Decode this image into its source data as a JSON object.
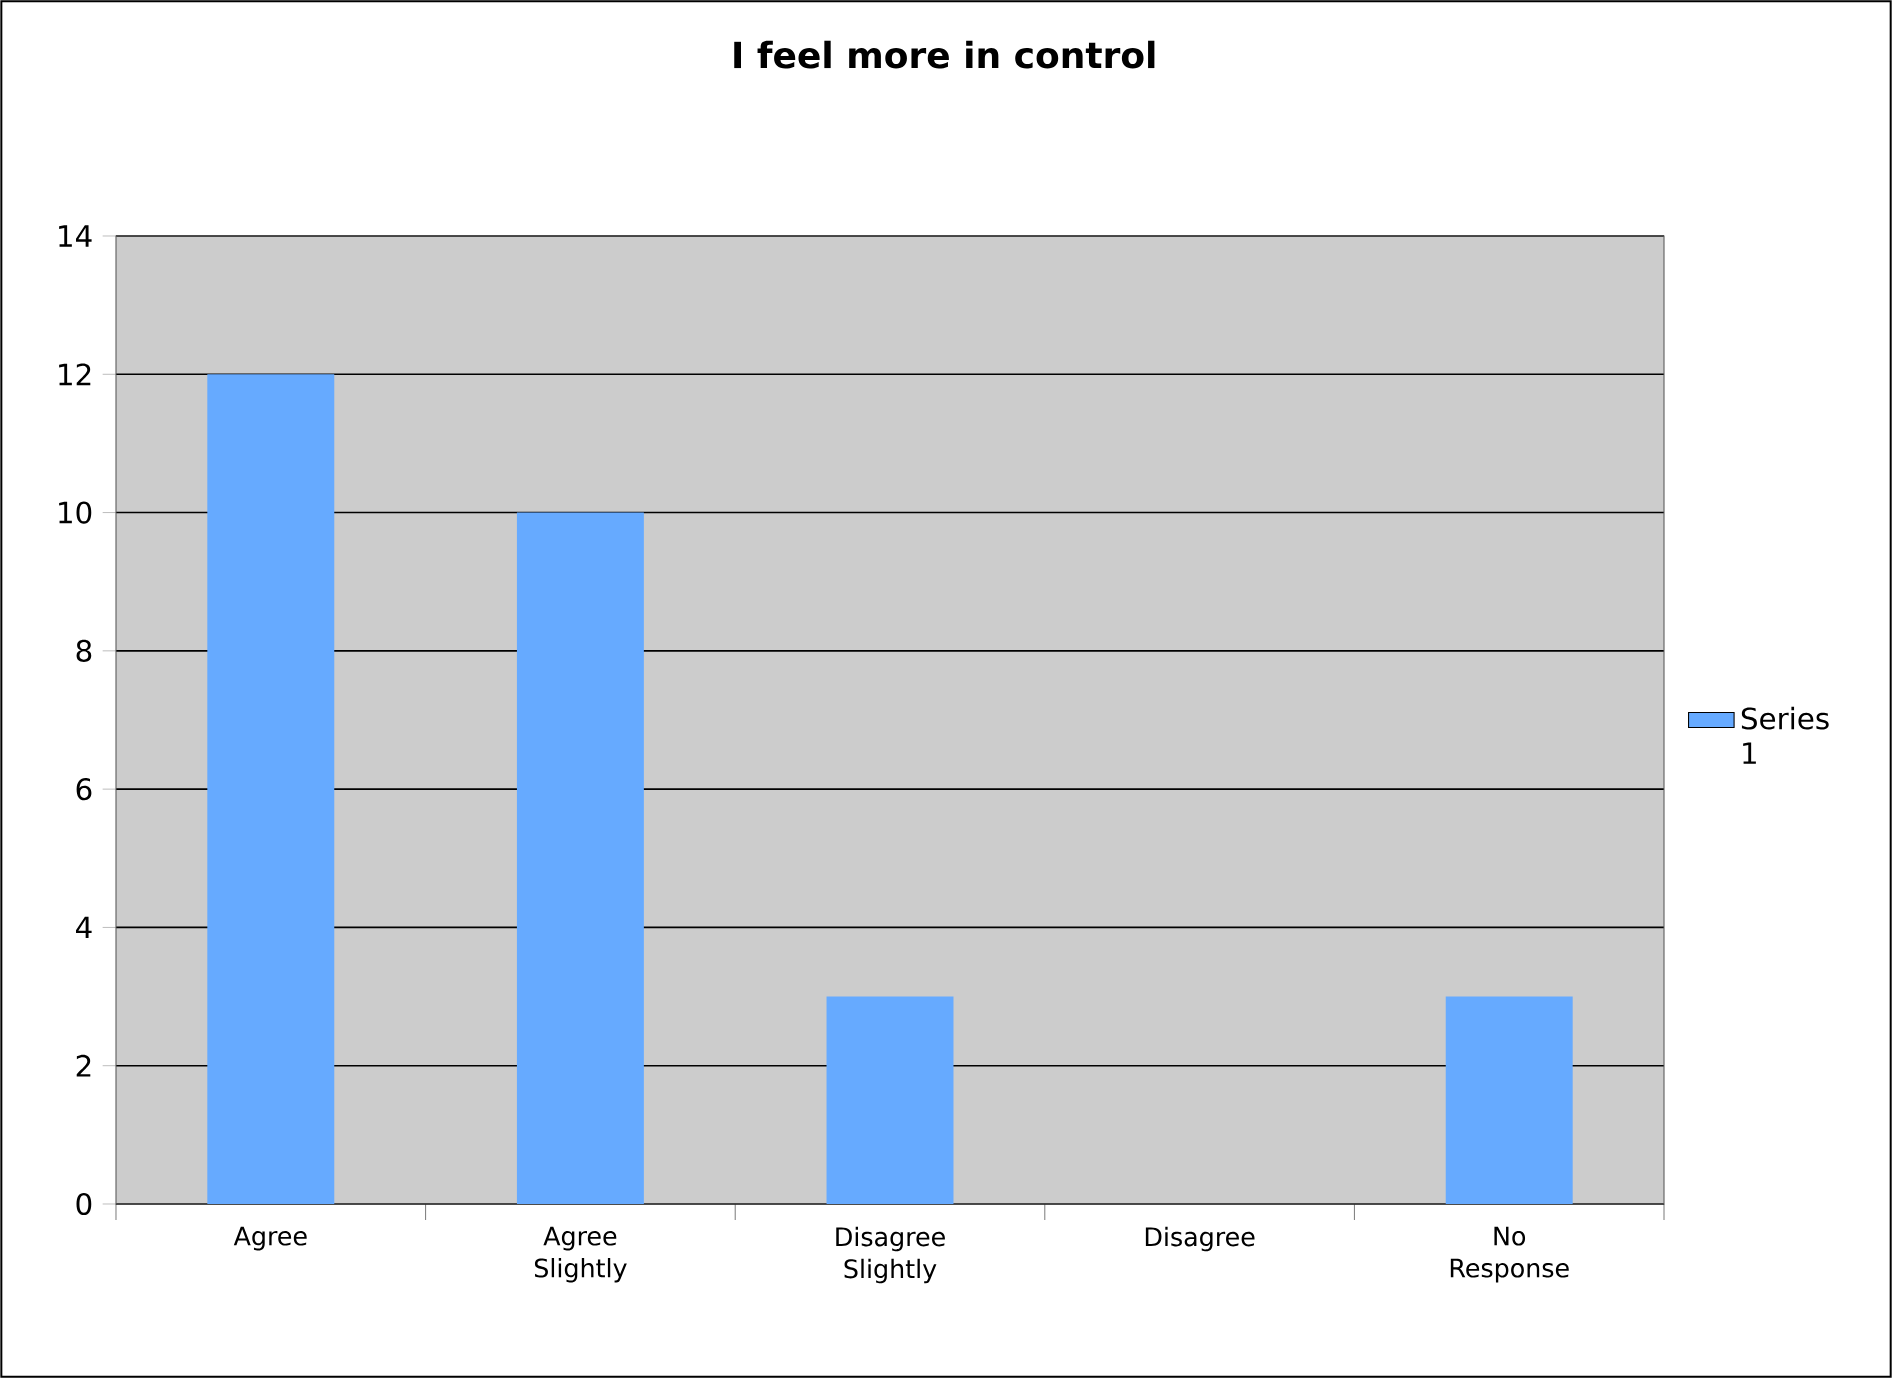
{
  "chart_data": {
    "type": "bar",
    "title": "I feel more in control",
    "categories": [
      "Agree",
      "Agree Slightly",
      "Disagree Slightly",
      "Disagree",
      "No Response"
    ],
    "series": [
      {
        "name": "Series 1",
        "color": "#66aaff",
        "values": [
          12,
          10,
          3,
          0,
          3
        ]
      }
    ],
    "ylim": [
      0,
      14
    ],
    "yticks": [
      0,
      2,
      4,
      6,
      8,
      10,
      12,
      14
    ],
    "grid": "y",
    "legend": "right"
  }
}
